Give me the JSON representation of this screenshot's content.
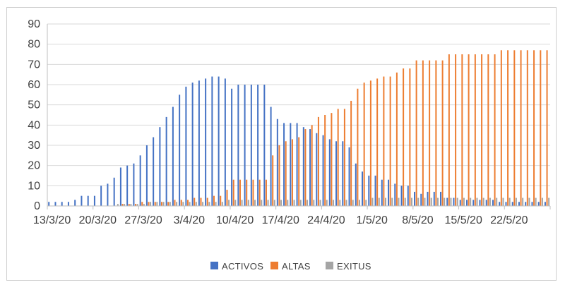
{
  "chart_data": {
    "type": "bar",
    "title": "",
    "xlabel": "",
    "ylabel": "",
    "ylim": [
      0,
      90
    ],
    "y_tick_step": 10,
    "grid": true,
    "legend_position": "bottom",
    "x_label_every": 7,
    "x_tick_labels": [
      "13/3/20",
      "20/3/20",
      "27/3/20",
      "3/4/20",
      "10/4/20",
      "17/4/20",
      "24/4/20",
      "1/5/20",
      "8/5/20",
      "15/5/20",
      "22/5/20"
    ],
    "categories": [
      "13/3/20",
      "14/3/20",
      "15/3/20",
      "16/3/20",
      "17/3/20",
      "18/3/20",
      "19/3/20",
      "20/3/20",
      "21/3/20",
      "22/3/20",
      "23/3/20",
      "24/3/20",
      "25/3/20",
      "26/3/20",
      "27/3/20",
      "28/3/20",
      "29/3/20",
      "30/3/20",
      "31/3/20",
      "1/4/20",
      "2/4/20",
      "3/4/20",
      "4/4/20",
      "5/4/20",
      "6/4/20",
      "7/4/20",
      "8/4/20",
      "9/4/20",
      "10/4/20",
      "11/4/20",
      "12/4/20",
      "13/4/20",
      "14/4/20",
      "15/4/20",
      "16/4/20",
      "17/4/20",
      "18/4/20",
      "19/4/20",
      "20/4/20",
      "21/4/20",
      "22/4/20",
      "23/4/20",
      "24/4/20",
      "25/4/20",
      "26/4/20",
      "27/4/20",
      "28/4/20",
      "29/4/20",
      "30/4/20",
      "1/5/20",
      "2/5/20",
      "3/5/20",
      "4/5/20",
      "5/5/20",
      "6/5/20",
      "7/5/20",
      "8/5/20",
      "9/5/20",
      "10/5/20",
      "11/5/20",
      "12/5/20",
      "13/5/20",
      "14/5/20",
      "15/5/20",
      "16/5/20",
      "17/5/20",
      "18/5/20",
      "19/5/20",
      "20/5/20",
      "21/5/20",
      "22/5/20",
      "23/5/20",
      "24/5/20",
      "25/5/20",
      "26/5/20",
      "27/5/20",
      "28/5/20"
    ],
    "series": [
      {
        "name": "ACTIVOS",
        "color": "#4472C4",
        "values": [
          2,
          2,
          2,
          2,
          3,
          5,
          5,
          5,
          10,
          11,
          14,
          19,
          20,
          21,
          25,
          30,
          34,
          39,
          44,
          49,
          55,
          59,
          61,
          62,
          63,
          64,
          64,
          63,
          58,
          60,
          60,
          60,
          60,
          60,
          49,
          43,
          41,
          41,
          41,
          39,
          38,
          36,
          35,
          33,
          32,
          32,
          29,
          21,
          17,
          15,
          15,
          13,
          13,
          11,
          10,
          10,
          7,
          6,
          7,
          7,
          7,
          4,
          4,
          3,
          3,
          3,
          3,
          3,
          3,
          2,
          2,
          2,
          2,
          2,
          2,
          2,
          2
        ]
      },
      {
        "name": "ALTAS",
        "color": "#ED7D31",
        "values": [
          0,
          0,
          0,
          0,
          0,
          0,
          0,
          0,
          0,
          0,
          0,
          1,
          1,
          1,
          2,
          2,
          2,
          2,
          2,
          3,
          3,
          3,
          4,
          4,
          4,
          5,
          5,
          8,
          13,
          13,
          13,
          13,
          13,
          13,
          25,
          30,
          32,
          33,
          34,
          38,
          40,
          44,
          45,
          46,
          48,
          48,
          52,
          58,
          61,
          62,
          63,
          64,
          64,
          66,
          68,
          68,
          72,
          72,
          72,
          72,
          72,
          75,
          75,
          75,
          75,
          75,
          75,
          75,
          75,
          77,
          77,
          77,
          77,
          77,
          77,
          77,
          77
        ]
      },
      {
        "name": "EXITUS",
        "color": "#A5A5A5",
        "values": [
          0,
          0,
          0,
          0,
          0,
          0,
          0,
          0,
          0,
          0,
          1,
          1,
          1,
          1,
          1,
          2,
          2,
          2,
          2,
          2,
          2,
          2,
          2,
          2,
          2,
          2,
          2,
          3,
          3,
          3,
          3,
          3,
          3,
          3,
          3,
          3,
          3,
          3,
          3,
          3,
          3,
          3,
          3,
          3,
          3,
          3,
          3,
          3,
          3,
          4,
          4,
          4,
          4,
          4,
          4,
          4,
          4,
          4,
          4,
          4,
          4,
          4,
          4,
          4,
          4,
          4,
          4,
          4,
          4,
          4,
          4,
          4,
          4,
          4,
          4,
          4,
          4
        ]
      }
    ],
    "colors": {
      "gridline": "#D9D9D9",
      "axis": "#BFBFBF",
      "tick_label": "#404040"
    }
  },
  "legend": {
    "items": [
      {
        "label": "ACTIVOS",
        "color": "#4472C4"
      },
      {
        "label": "ALTAS",
        "color": "#ED7D31"
      },
      {
        "label": "EXITUS",
        "color": "#A5A5A5"
      }
    ]
  }
}
